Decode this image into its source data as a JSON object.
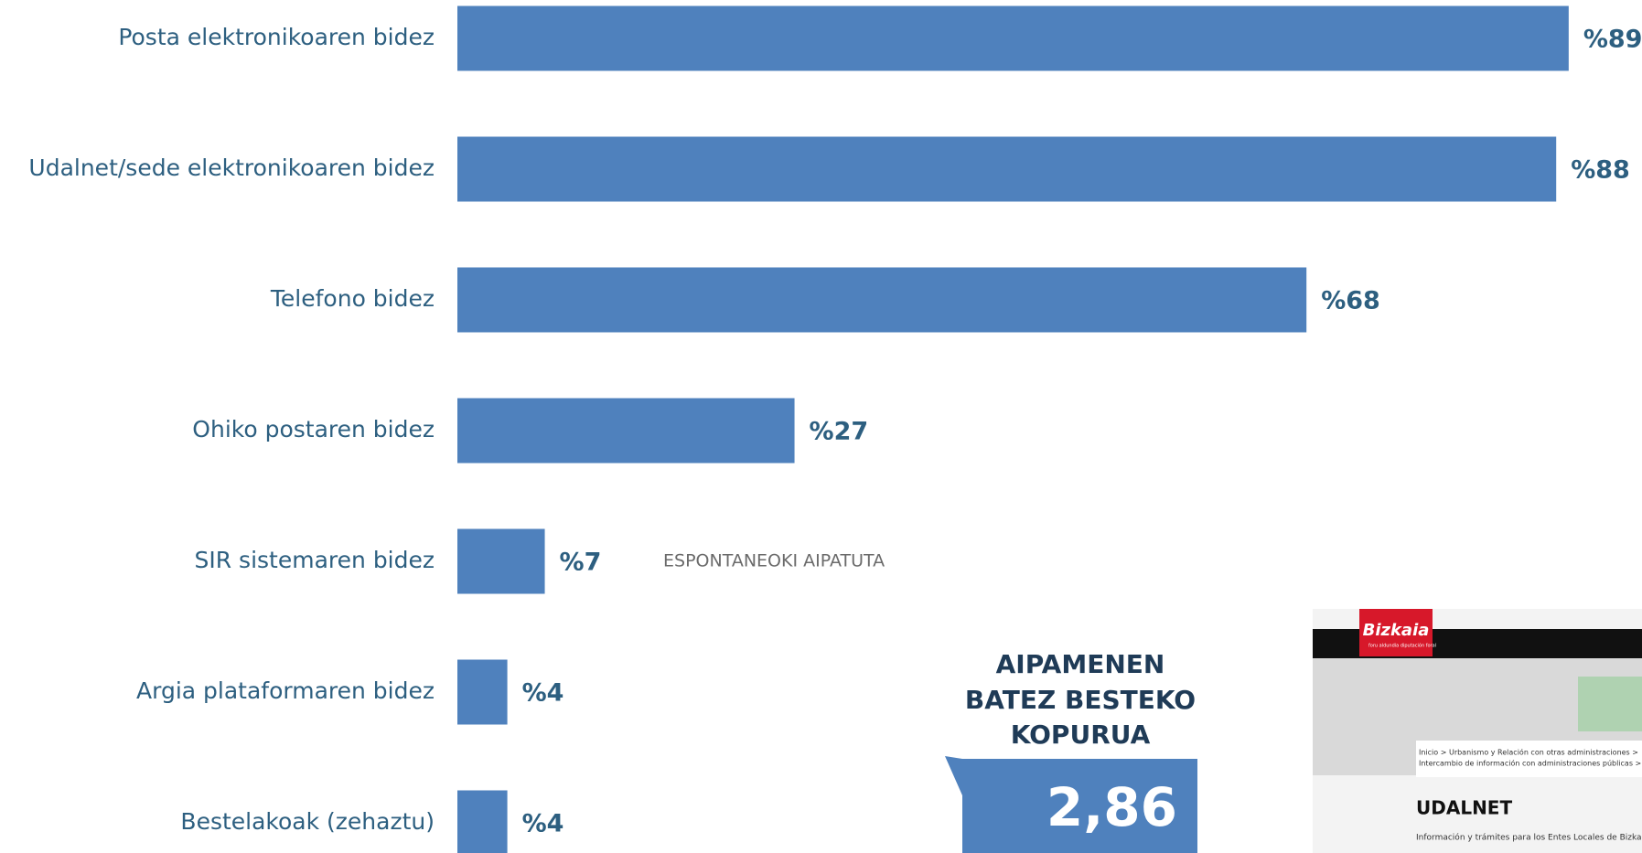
{
  "chart_data": {
    "type": "hbar",
    "categories": [
      "Posta elektronikoaren bidez",
      "Udalnet/sede elektronikoaren bidez",
      "Telefono bidez",
      "Ohiko postaren bidez",
      "SIR sistemaren bidez",
      "Argia plataformaren bidez",
      "Bestelakoak (zehaztu)"
    ],
    "values": [
      89,
      88,
      68,
      27,
      7,
      4,
      4
    ],
    "value_labels": [
      "%89",
      "%88",
      "%68",
      "%27",
      "%7",
      "%4",
      "%4"
    ],
    "color": "#4f81bd",
    "annotation": "ESPONTANEOKI AIPATUTA"
  },
  "callout": {
    "title": [
      "AIPAMENEN",
      "BATEZ BESTEKO",
      "KOPURUA"
    ],
    "value": "2,86"
  },
  "screenshot": {
    "logo": "Bizkaia",
    "logo_sub": "foru aldundia diputación foral",
    "breadcrumb": [
      "Inicio > Urbanismo y Relación con otras administraciones >",
      "Intercambio de información con administraciones públicas > Ud"
    ],
    "heading": "UDALNET",
    "description": "Información y trámites para los Entes Locales de Bizka"
  }
}
